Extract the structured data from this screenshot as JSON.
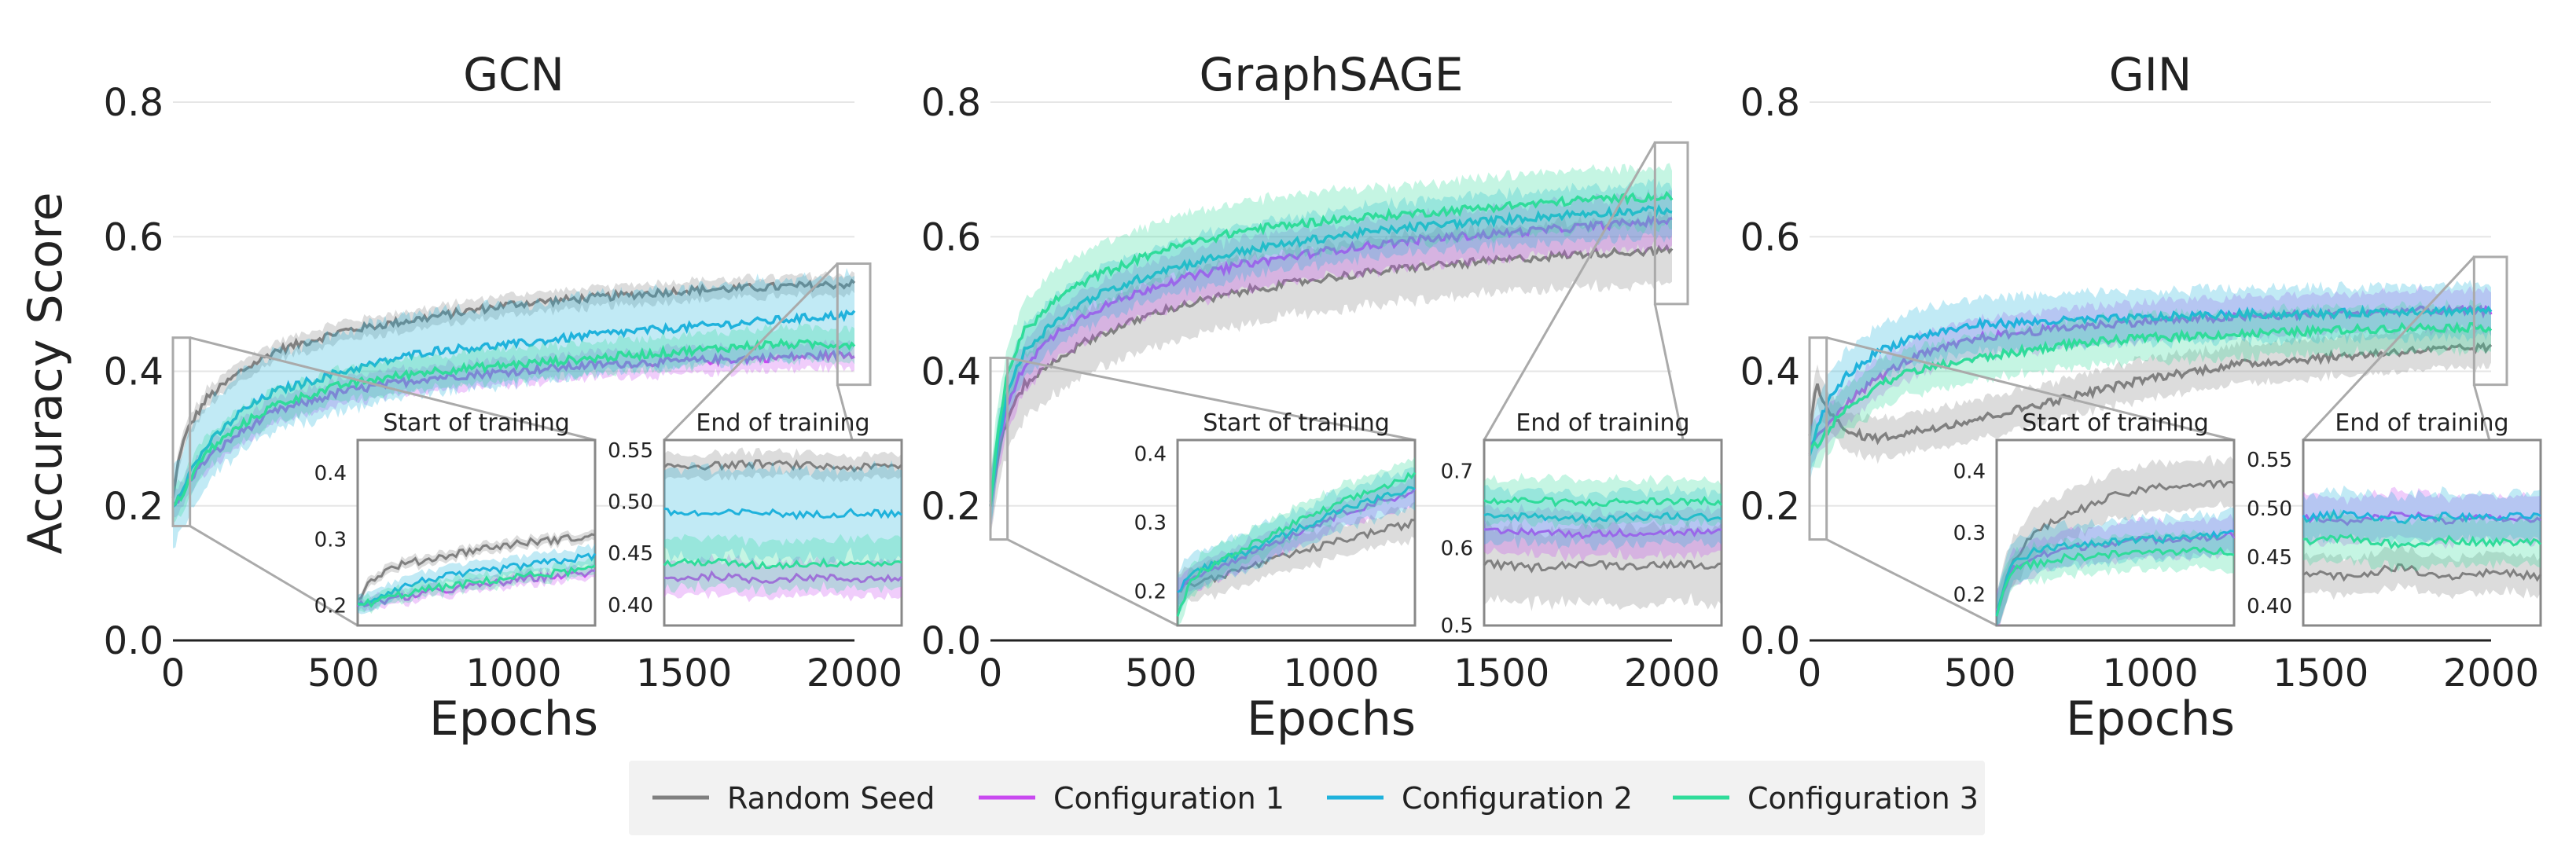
{
  "figure": {
    "ylabel": "Accuracy Score",
    "xlabel": "Epochs",
    "series_names": [
      "Random Seed",
      "Configuration 1",
      "Configuration 2",
      "Configuration 3"
    ],
    "colors": {
      "Random Seed": "#808080",
      "Configuration 1": "#c94af0",
      "Configuration 2": "#1fb2dc",
      "Configuration 3": "#2fdc9a"
    }
  },
  "legend": {
    "items": [
      {
        "label": "Random Seed",
        "color": "#808080"
      },
      {
        "label": "Configuration 1",
        "color": "#c94af0"
      },
      {
        "label": "Configuration 2",
        "color": "#1fb2dc"
      },
      {
        "label": "Configuration 3",
        "color": "#2fdc9a"
      }
    ]
  },
  "chart_data": [
    {
      "type": "line",
      "title": "GCN",
      "xlabel": "Epochs",
      "ylabel": "Accuracy Score",
      "xlim": [
        0,
        2000
      ],
      "ylim": [
        0,
        0.8
      ],
      "xticks": [
        0,
        500,
        1000,
        1500,
        2000
      ],
      "yticks": [
        0.0,
        0.2,
        0.4,
        0.6,
        0.8
      ],
      "series": [
        {
          "name": "Random Seed",
          "x": [
            0,
            20,
            50,
            100,
            200,
            300,
            500,
            750,
            1000,
            1250,
            1500,
            1750,
            2000
          ],
          "y": [
            0.21,
            0.28,
            0.32,
            0.36,
            0.4,
            0.43,
            0.46,
            0.48,
            0.5,
            0.51,
            0.52,
            0.525,
            0.53
          ],
          "band": 0.015
        },
        {
          "name": "Configuration 1",
          "x": [
            0,
            20,
            50,
            100,
            200,
            300,
            500,
            750,
            1000,
            1250,
            1500,
            1750,
            2000
          ],
          "y": [
            0.2,
            0.21,
            0.24,
            0.27,
            0.31,
            0.34,
            0.37,
            0.39,
            0.4,
            0.41,
            0.415,
            0.42,
            0.425
          ],
          "band": 0.02
        },
        {
          "name": "Configuration 2",
          "x": [
            0,
            20,
            50,
            100,
            200,
            300,
            500,
            750,
            1000,
            1250,
            1500,
            1750,
            2000
          ],
          "y": [
            0.2,
            0.22,
            0.25,
            0.29,
            0.34,
            0.37,
            0.4,
            0.43,
            0.44,
            0.455,
            0.465,
            0.475,
            0.485
          ],
          "band": 0.06
        },
        {
          "name": "Configuration 3",
          "x": [
            0,
            20,
            50,
            100,
            200,
            300,
            500,
            750,
            1000,
            1250,
            1500,
            1750,
            2000
          ],
          "y": [
            0.2,
            0.21,
            0.24,
            0.28,
            0.32,
            0.35,
            0.38,
            0.4,
            0.41,
            0.42,
            0.43,
            0.44,
            0.44
          ],
          "band": 0.025
        }
      ],
      "insets": [
        {
          "title": "Start of training",
          "xlim": [
            0,
            50
          ],
          "ylim": [
            0.17,
            0.45
          ],
          "yticks": [
            0.2,
            0.3,
            0.4
          ],
          "ytick_labels": [
            "0.2",
            "0.3",
            "0.4"
          ],
          "x": [
            0,
            3,
            8,
            15,
            25,
            35,
            50
          ],
          "series": [
            {
              "name": "Random Seed",
              "y": [
                0.21,
                0.24,
                0.26,
                0.27,
                0.285,
                0.295,
                0.305
              ],
              "band": 0.008
            },
            {
              "name": "Configuration 1",
              "y": [
                0.2,
                0.205,
                0.21,
                0.22,
                0.23,
                0.24,
                0.25
              ],
              "band": 0.01
            },
            {
              "name": "Configuration 2",
              "y": [
                0.2,
                0.21,
                0.225,
                0.24,
                0.25,
                0.26,
                0.275
              ],
              "band": 0.015
            },
            {
              "name": "Configuration 3",
              "y": [
                0.2,
                0.205,
                0.215,
                0.225,
                0.235,
                0.245,
                0.255
              ],
              "band": 0.012
            }
          ]
        },
        {
          "title": "End of training",
          "xlim": [
            1950,
            2000
          ],
          "ylim": [
            0.38,
            0.56
          ],
          "yticks": [
            0.4,
            0.45,
            0.5,
            0.55
          ],
          "ytick_labels": [
            "0.40",
            "0.45",
            "0.50",
            "0.55"
          ],
          "x": [
            1950,
            1960,
            1970,
            1980,
            1990,
            2000
          ],
          "series": [
            {
              "name": "Random Seed",
              "y": [
                0.535,
                0.535,
                0.537,
                0.535,
                0.533,
                0.535
              ],
              "band": 0.012
            },
            {
              "name": "Configuration 1",
              "y": [
                0.425,
                0.428,
                0.424,
                0.427,
                0.425,
                0.426
              ],
              "band": 0.018
            },
            {
              "name": "Configuration 2",
              "y": [
                0.49,
                0.488,
                0.49,
                0.487,
                0.49,
                0.488
              ],
              "band": 0.045
            },
            {
              "name": "Configuration 3",
              "y": [
                0.44,
                0.442,
                0.438,
                0.44,
                0.441,
                0.44
              ],
              "band": 0.025
            }
          ]
        }
      ]
    },
    {
      "type": "line",
      "title": "GraphSAGE",
      "xlabel": "Epochs",
      "ylabel": "",
      "xlim": [
        0,
        2000
      ],
      "ylim": [
        0,
        0.8
      ],
      "xticks": [
        0,
        500,
        1000,
        1500,
        2000
      ],
      "yticks": [
        0.0,
        0.2,
        0.4,
        0.6,
        0.8
      ],
      "series": [
        {
          "name": "Random Seed",
          "x": [
            0,
            20,
            50,
            100,
            200,
            300,
            500,
            750,
            1000,
            1250,
            1500,
            1750,
            2000
          ],
          "y": [
            0.2,
            0.27,
            0.33,
            0.38,
            0.42,
            0.45,
            0.49,
            0.52,
            0.54,
            0.555,
            0.565,
            0.575,
            0.58
          ],
          "band": 0.05
        },
        {
          "name": "Configuration 1",
          "x": [
            0,
            20,
            50,
            100,
            200,
            300,
            500,
            750,
            1000,
            1250,
            1500,
            1750,
            2000
          ],
          "y": [
            0.2,
            0.28,
            0.35,
            0.41,
            0.46,
            0.49,
            0.53,
            0.56,
            0.58,
            0.595,
            0.605,
            0.615,
            0.625
          ],
          "band": 0.04
        },
        {
          "name": "Configuration 2",
          "x": [
            0,
            20,
            50,
            100,
            200,
            300,
            500,
            750,
            1000,
            1250,
            1500,
            1750,
            2000
          ],
          "y": [
            0.2,
            0.29,
            0.37,
            0.43,
            0.48,
            0.51,
            0.55,
            0.58,
            0.6,
            0.615,
            0.625,
            0.635,
            0.64
          ],
          "band": 0.04
        },
        {
          "name": "Configuration 3",
          "x": [
            0,
            20,
            50,
            100,
            200,
            300,
            500,
            750,
            1000,
            1250,
            1500,
            1750,
            2000
          ],
          "y": [
            0.2,
            0.3,
            0.4,
            0.46,
            0.51,
            0.54,
            0.58,
            0.61,
            0.625,
            0.635,
            0.645,
            0.655,
            0.66
          ],
          "band": 0.045
        }
      ],
      "insets": [
        {
          "title": "Start of training",
          "xlim": [
            0,
            50
          ],
          "ylim": [
            0.15,
            0.42
          ],
          "yticks": [
            0.2,
            0.3,
            0.4
          ],
          "ytick_labels": [
            "0.2",
            "0.3",
            "0.4"
          ],
          "x": [
            0,
            3,
            8,
            15,
            25,
            35,
            50
          ],
          "series": [
            {
              "name": "Random Seed",
              "y": [
                0.2,
                0.21,
                0.22,
                0.235,
                0.255,
                0.275,
                0.3
              ],
              "band": 0.025
            },
            {
              "name": "Configuration 1",
              "y": [
                0.2,
                0.22,
                0.235,
                0.255,
                0.285,
                0.315,
                0.345
              ],
              "band": 0.02
            },
            {
              "name": "Configuration 2",
              "y": [
                0.2,
                0.225,
                0.24,
                0.26,
                0.29,
                0.32,
                0.35
              ],
              "band": 0.03
            },
            {
              "name": "Configuration 3",
              "y": [
                0.16,
                0.22,
                0.24,
                0.265,
                0.3,
                0.33,
                0.37
              ],
              "band": 0.025
            }
          ]
        },
        {
          "title": "End of training",
          "xlim": [
            1950,
            2000
          ],
          "ylim": [
            0.5,
            0.74
          ],
          "yticks": [
            0.5,
            0.6,
            0.7
          ],
          "ytick_labels": [
            "0.5",
            "0.6",
            "0.7"
          ],
          "x": [
            1950,
            1960,
            1970,
            1980,
            1990,
            2000
          ],
          "series": [
            {
              "name": "Random Seed",
              "y": [
                0.58,
                0.575,
                0.58,
                0.577,
                0.58,
                0.578
              ],
              "band": 0.05
            },
            {
              "name": "Configuration 1",
              "y": [
                0.62,
                0.622,
                0.618,
                0.62,
                0.621,
                0.62
              ],
              "band": 0.03
            },
            {
              "name": "Configuration 2",
              "y": [
                0.64,
                0.642,
                0.638,
                0.64,
                0.641,
                0.64
              ],
              "band": 0.035
            },
            {
              "name": "Configuration 3",
              "y": [
                0.66,
                0.662,
                0.658,
                0.66,
                0.661,
                0.66
              ],
              "band": 0.03
            }
          ]
        }
      ]
    },
    {
      "type": "line",
      "title": "GIN",
      "xlabel": "Epochs",
      "ylabel": "",
      "xlim": [
        0,
        2000
      ],
      "ylim": [
        0,
        0.8
      ],
      "xticks": [
        0,
        500,
        1000,
        1500,
        2000
      ],
      "yticks": [
        0.0,
        0.2,
        0.4,
        0.6,
        0.8
      ],
      "series": [
        {
          "name": "Random Seed",
          "x": [
            0,
            20,
            50,
            100,
            200,
            300,
            500,
            750,
            1000,
            1250,
            1500,
            1750,
            2000
          ],
          "y": [
            0.3,
            0.38,
            0.35,
            0.31,
            0.3,
            0.31,
            0.33,
            0.36,
            0.39,
            0.41,
            0.42,
            0.43,
            0.435
          ],
          "band": 0.03
        },
        {
          "name": "Configuration 1",
          "x": [
            0,
            20,
            50,
            100,
            200,
            300,
            500,
            750,
            1000,
            1250,
            1500,
            1750,
            2000
          ],
          "y": [
            0.28,
            0.3,
            0.32,
            0.35,
            0.39,
            0.42,
            0.45,
            0.465,
            0.475,
            0.48,
            0.485,
            0.49,
            0.49
          ],
          "band": 0.03
        },
        {
          "name": "Configuration 2",
          "x": [
            0,
            20,
            50,
            100,
            200,
            300,
            500,
            750,
            1000,
            1250,
            1500,
            1750,
            2000
          ],
          "y": [
            0.28,
            0.31,
            0.35,
            0.39,
            0.43,
            0.45,
            0.47,
            0.475,
            0.48,
            0.485,
            0.485,
            0.49,
            0.49
          ],
          "band": 0.04
        },
        {
          "name": "Configuration 3",
          "x": [
            0,
            20,
            50,
            100,
            200,
            300,
            500,
            750,
            1000,
            1250,
            1500,
            1750,
            2000
          ],
          "y": [
            0.28,
            0.29,
            0.31,
            0.34,
            0.38,
            0.4,
            0.42,
            0.44,
            0.45,
            0.455,
            0.46,
            0.465,
            0.465
          ],
          "band": 0.035
        }
      ],
      "insets": [
        {
          "title": "Start of training",
          "xlim": [
            0,
            50
          ],
          "ylim": [
            0.15,
            0.45
          ],
          "yticks": [
            0.2,
            0.3,
            0.4
          ],
          "ytick_labels": [
            "0.2",
            "0.3",
            "0.4"
          ],
          "x": [
            0,
            3,
            8,
            15,
            25,
            35,
            50
          ],
          "series": [
            {
              "name": "Random Seed",
              "y": [
                0.17,
                0.25,
                0.3,
                0.33,
                0.36,
                0.375,
                0.38
              ],
              "band": 0.04
            },
            {
              "name": "Configuration 1",
              "y": [
                0.17,
                0.24,
                0.26,
                0.275,
                0.285,
                0.29,
                0.295
              ],
              "band": 0.03
            },
            {
              "name": "Configuration 2",
              "y": [
                0.17,
                0.25,
                0.27,
                0.28,
                0.285,
                0.29,
                0.3
              ],
              "band": 0.035
            },
            {
              "name": "Configuration 3",
              "y": [
                0.17,
                0.24,
                0.25,
                0.26,
                0.265,
                0.27,
                0.27
              ],
              "band": 0.03
            }
          ]
        },
        {
          "title": "End of training",
          "xlim": [
            1950,
            2000
          ],
          "ylim": [
            0.38,
            0.57
          ],
          "yticks": [
            0.4,
            0.45,
            0.5,
            0.55
          ],
          "ytick_labels": [
            "0.40",
            "0.45",
            "0.50",
            "0.55"
          ],
          "x": [
            1950,
            1960,
            1970,
            1980,
            1990,
            2000
          ],
          "series": [
            {
              "name": "Random Seed",
              "y": [
                0.435,
                0.43,
                0.44,
                0.43,
                0.435,
                0.43
              ],
              "band": 0.02
            },
            {
              "name": "Configuration 1",
              "y": [
                0.49,
                0.485,
                0.495,
                0.488,
                0.49,
                0.487
              ],
              "band": 0.025
            },
            {
              "name": "Configuration 2",
              "y": [
                0.49,
                0.495,
                0.488,
                0.492,
                0.49,
                0.493
              ],
              "band": 0.025
            },
            {
              "name": "Configuration 3",
              "y": [
                0.465,
                0.47,
                0.462,
                0.468,
                0.465,
                0.466
              ],
              "band": 0.025
            }
          ]
        }
      ]
    }
  ]
}
